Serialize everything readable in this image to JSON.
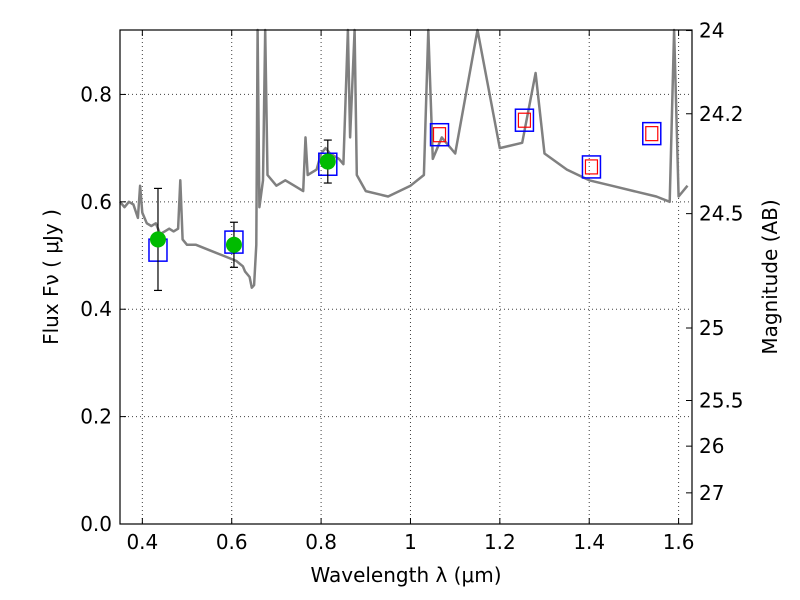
{
  "chart_data": {
    "type": "line",
    "xlabel": "Wavelength  λ (μm)",
    "ylabel": "Flux  Fν  ( μJy )",
    "ylabel_right": "Magnitude (AB)",
    "xlim": [
      0.35,
      1.63
    ],
    "ylim": [
      0.0,
      0.92
    ],
    "grid": true,
    "x_ticks": [
      {
        "value": 0.4,
        "label": "0.4"
      },
      {
        "value": 0.6,
        "label": "0.6"
      },
      {
        "value": 0.8,
        "label": "0.8"
      },
      {
        "value": 1.0,
        "label": "1"
      },
      {
        "value": 1.2,
        "label": "1.2"
      },
      {
        "value": 1.4,
        "label": "1.4"
      },
      {
        "value": 1.6,
        "label": "1.6"
      }
    ],
    "y_ticks": [
      {
        "value": 0.0,
        "label": "0.0"
      },
      {
        "value": 0.2,
        "label": "0.2"
      },
      {
        "value": 0.4,
        "label": "0.4"
      },
      {
        "value": 0.6,
        "label": "0.6"
      },
      {
        "value": 0.8,
        "label": "0.8"
      }
    ],
    "right_ticks": [
      {
        "flux": 0.919,
        "label": "24"
      },
      {
        "flux": 0.764,
        "label": "24.2"
      },
      {
        "flux": 0.578,
        "label": "24.5"
      },
      {
        "flux": 0.365,
        "label": "25"
      },
      {
        "flux": 0.23,
        "label": "25.5"
      },
      {
        "flux": 0.145,
        "label": "26"
      },
      {
        "flux": 0.058,
        "label": "27"
      }
    ],
    "series": [
      {
        "kind": "model_spectrum",
        "color": "#808080",
        "points": [
          [
            0.35,
            0.6
          ],
          [
            0.36,
            0.59
          ],
          [
            0.37,
            0.6
          ],
          [
            0.38,
            0.595
          ],
          [
            0.39,
            0.57
          ],
          [
            0.395,
            0.63
          ],
          [
            0.4,
            0.58
          ],
          [
            0.41,
            0.56
          ],
          [
            0.42,
            0.555
          ],
          [
            0.43,
            0.56
          ],
          [
            0.44,
            0.54
          ],
          [
            0.45,
            0.545
          ],
          [
            0.46,
            0.55
          ],
          [
            0.47,
            0.545
          ],
          [
            0.48,
            0.55
          ],
          [
            0.485,
            0.64
          ],
          [
            0.49,
            0.53
          ],
          [
            0.5,
            0.52
          ],
          [
            0.52,
            0.52
          ],
          [
            0.55,
            0.51
          ],
          [
            0.58,
            0.5
          ],
          [
            0.61,
            0.49
          ],
          [
            0.625,
            0.48
          ],
          [
            0.63,
            0.47
          ],
          [
            0.64,
            0.46
          ],
          [
            0.645,
            0.44
          ],
          [
            0.65,
            0.445
          ],
          [
            0.655,
            0.52
          ],
          [
            0.658,
            0.92
          ],
          [
            0.662,
            0.59
          ],
          [
            0.67,
            0.64
          ],
          [
            0.675,
            0.92
          ],
          [
            0.68,
            0.65
          ],
          [
            0.7,
            0.63
          ],
          [
            0.72,
            0.64
          ],
          [
            0.74,
            0.63
          ],
          [
            0.76,
            0.62
          ],
          [
            0.765,
            0.72
          ],
          [
            0.77,
            0.65
          ],
          [
            0.79,
            0.66
          ],
          [
            0.8,
            0.69
          ],
          [
            0.81,
            0.7
          ],
          [
            0.82,
            0.69
          ],
          [
            0.84,
            0.68
          ],
          [
            0.85,
            0.67
          ],
          [
            0.86,
            0.92
          ],
          [
            0.865,
            0.72
          ],
          [
            0.875,
            0.92
          ],
          [
            0.88,
            0.65
          ],
          [
            0.9,
            0.62
          ],
          [
            0.95,
            0.61
          ],
          [
            1.0,
            0.63
          ],
          [
            1.03,
            0.65
          ],
          [
            1.04,
            0.92
          ],
          [
            1.05,
            0.68
          ],
          [
            1.07,
            0.72
          ],
          [
            1.1,
            0.69
          ],
          [
            1.15,
            0.92
          ],
          [
            1.2,
            0.7
          ],
          [
            1.25,
            0.71
          ],
          [
            1.28,
            0.84
          ],
          [
            1.3,
            0.69
          ],
          [
            1.35,
            0.66
          ],
          [
            1.4,
            0.64
          ],
          [
            1.45,
            0.63
          ],
          [
            1.5,
            0.62
          ],
          [
            1.55,
            0.61
          ],
          [
            1.58,
            0.6
          ],
          [
            1.59,
            0.92
          ],
          [
            1.6,
            0.61
          ],
          [
            1.62,
            0.63
          ]
        ]
      },
      {
        "kind": "observed_flux",
        "color": "#00bb00",
        "points": [
          {
            "x": 0.435,
            "y": 0.53,
            "err": 0.095
          },
          {
            "x": 0.605,
            "y": 0.52,
            "err": 0.042
          },
          {
            "x": 0.815,
            "y": 0.675,
            "err": 0.04
          }
        ]
      },
      {
        "kind": "model_flux",
        "color": "#0000ff",
        "points": [
          {
            "x": 0.435,
            "y": 0.51
          },
          {
            "x": 0.605,
            "y": 0.525
          },
          {
            "x": 0.815,
            "y": 0.67
          },
          {
            "x": 1.065,
            "y": 0.725
          },
          {
            "x": 1.255,
            "y": 0.752
          },
          {
            "x": 1.405,
            "y": 0.665
          },
          {
            "x": 1.54,
            "y": 0.727
          }
        ]
      },
      {
        "kind": "upper_limit",
        "color": "#ff0000",
        "points": [
          {
            "x": 1.065,
            "y": 0.725
          },
          {
            "x": 1.255,
            "y": 0.752
          },
          {
            "x": 1.405,
            "y": 0.665
          },
          {
            "x": 1.54,
            "y": 0.727
          }
        ]
      }
    ]
  }
}
